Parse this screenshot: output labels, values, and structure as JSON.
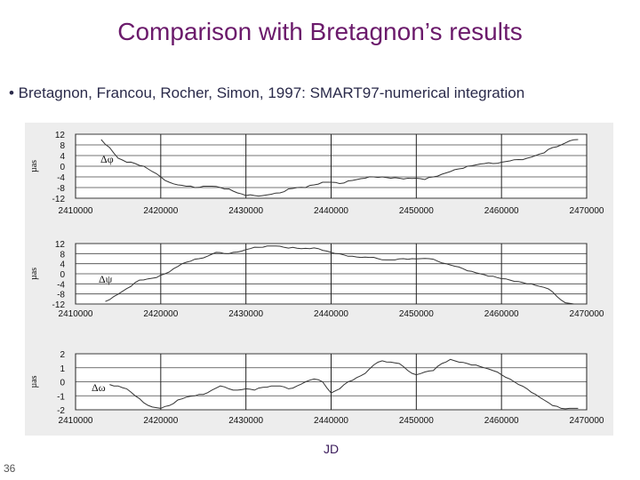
{
  "slide": {
    "title": "Comparison with Bretagnon’s results",
    "bullet": "• Bretagnon, Francou, Rocher, Simon, 1997: SMART97-numerical integration",
    "x_axis_label": "JD",
    "page_number": "36"
  },
  "chart_data": [
    {
      "type": "line",
      "series_label": "Δφ",
      "ylabel": "µas",
      "ylim": [
        -12,
        12
      ],
      "yticks": [
        "12",
        "8",
        "4",
        "0",
        "-4",
        "-8",
        "-12"
      ],
      "xlim": [
        2410000,
        2470000
      ],
      "xticks": [
        "2410000",
        "2420000",
        "2430000",
        "2440000",
        "2450000",
        "2460000",
        "2470000"
      ],
      "grid": true,
      "x": [
        2413000,
        2414000,
        2415000,
        2416000,
        2417000,
        2418000,
        2419000,
        2420000,
        2421000,
        2422000,
        2423000,
        2424000,
        2425000,
        2426000,
        2427000,
        2428000,
        2429000,
        2430000,
        2431000,
        2432000,
        2433000,
        2434000,
        2435000,
        2436000,
        2437000,
        2438000,
        2439000,
        2440000,
        2441000,
        2442000,
        2443000,
        2444000,
        2445000,
        2446000,
        2447000,
        2448000,
        2449000,
        2450000,
        2451000,
        2452000,
        2453000,
        2454000,
        2455000,
        2456000,
        2457000,
        2458000,
        2459000,
        2460000,
        2461000,
        2462000,
        2463000,
        2464000,
        2465000,
        2466000,
        2467000,
        2468000,
        2469000
      ],
      "values": [
        10,
        7,
        3,
        1.5,
        1,
        0,
        -2,
        -4,
        -6,
        -7,
        -7.5,
        -8,
        -7.5,
        -7.5,
        -8,
        -8.5,
        -10,
        -11,
        -11,
        -11,
        -10.5,
        -10,
        -8.5,
        -8,
        -8,
        -7,
        -6,
        -6,
        -6.5,
        -5.5,
        -5,
        -4.5,
        -4,
        -4,
        -4.5,
        -4.5,
        -4.5,
        -4.5,
        -5,
        -4,
        -3,
        -2,
        -1,
        0,
        0.5,
        1,
        1,
        1.5,
        2,
        2.5,
        3,
        4,
        5,
        7,
        8,
        9.5,
        10
      ]
    },
    {
      "type": "line",
      "series_label": "Δψ",
      "ylabel": "µas",
      "ylim": [
        -12,
        12
      ],
      "yticks": [
        "12",
        "8",
        "4",
        "0",
        "-4",
        "-8",
        "-12"
      ],
      "xlim": [
        2410000,
        2470000
      ],
      "xticks": [
        "2410000",
        "2420000",
        "2430000",
        "2440000",
        "2450000",
        "2460000",
        "2470000"
      ],
      "grid": true,
      "x": [
        2413500,
        2414500,
        2415500,
        2416500,
        2417500,
        2418500,
        2419500,
        2420500,
        2421500,
        2422500,
        2423500,
        2424500,
        2425500,
        2426500,
        2427500,
        2428500,
        2429500,
        2430500,
        2431500,
        2432500,
        2433500,
        2434500,
        2435500,
        2436500,
        2437500,
        2438500,
        2439500,
        2440500,
        2441500,
        2442500,
        2443500,
        2444500,
        2445500,
        2446500,
        2447500,
        2448500,
        2449500,
        2450500,
        2451500,
        2452500,
        2453500,
        2454500,
        2455500,
        2456500,
        2457500,
        2458500,
        2459500,
        2460500,
        2461500,
        2462500,
        2463500,
        2464500,
        2465500,
        2466500,
        2467500,
        2468500
      ],
      "values": [
        -11,
        -9,
        -7,
        -5,
        -2.5,
        -2,
        -1.5,
        0,
        2,
        4,
        5,
        6,
        7,
        8.5,
        8,
        8.5,
        9,
        10,
        10.5,
        11,
        11,
        10.5,
        10.5,
        10,
        10,
        10,
        9,
        8,
        7.5,
        7,
        6.5,
        6.5,
        6,
        5.5,
        5.5,
        6,
        6,
        6,
        6,
        5,
        4,
        3,
        2,
        1,
        0,
        -1,
        -1.5,
        -2,
        -3,
        -3.5,
        -4,
        -5,
        -6,
        -9,
        -11.5,
        -12
      ]
    },
    {
      "type": "line",
      "series_label": "Δω",
      "ylabel": "µas",
      "ylim": [
        -2,
        2
      ],
      "yticks": [
        "2",
        "1",
        "0",
        "-1",
        "-2"
      ],
      "xlim": [
        2410000,
        2470000
      ],
      "xticks": [
        "2410000",
        "2420000",
        "2430000",
        "2440000",
        "2450000",
        "2460000",
        "2470000"
      ],
      "grid": true,
      "x": [
        2414000,
        2415000,
        2416000,
        2417000,
        2418000,
        2419000,
        2420000,
        2421000,
        2422000,
        2423000,
        2424000,
        2425000,
        2426000,
        2427000,
        2428000,
        2429000,
        2430000,
        2431000,
        2432000,
        2433000,
        2434000,
        2435000,
        2436000,
        2437000,
        2438000,
        2439000,
        2440000,
        2441000,
        2442000,
        2443000,
        2444000,
        2445000,
        2446000,
        2447000,
        2448000,
        2449000,
        2450000,
        2451000,
        2452000,
        2453000,
        2454000,
        2455000,
        2456000,
        2457000,
        2458000,
        2459000,
        2460000,
        2461000,
        2462000,
        2463000,
        2464000,
        2465000,
        2466000,
        2467000,
        2468000,
        2469000
      ],
      "values": [
        -0.2,
        -0.3,
        -0.5,
        -1,
        -1.5,
        -1.8,
        -1.9,
        -1.7,
        -1.3,
        -1.1,
        -1,
        -0.9,
        -0.6,
        -0.3,
        -0.5,
        -0.6,
        -0.5,
        -0.6,
        -0.4,
        -0.3,
        -0.3,
        -0.5,
        -0.3,
        0,
        0.2,
        0,
        -0.8,
        -0.5,
        0,
        0.3,
        0.6,
        1.2,
        1.5,
        1.4,
        1.3,
        0.8,
        0.5,
        0.7,
        0.8,
        1.3,
        1.6,
        1.4,
        1.3,
        1.2,
        1,
        0.8,
        0.5,
        0.2,
        -0.2,
        -0.5,
        -0.9,
        -1.3,
        -1.7,
        -1.9,
        -1.9,
        -1.9
      ]
    }
  ]
}
